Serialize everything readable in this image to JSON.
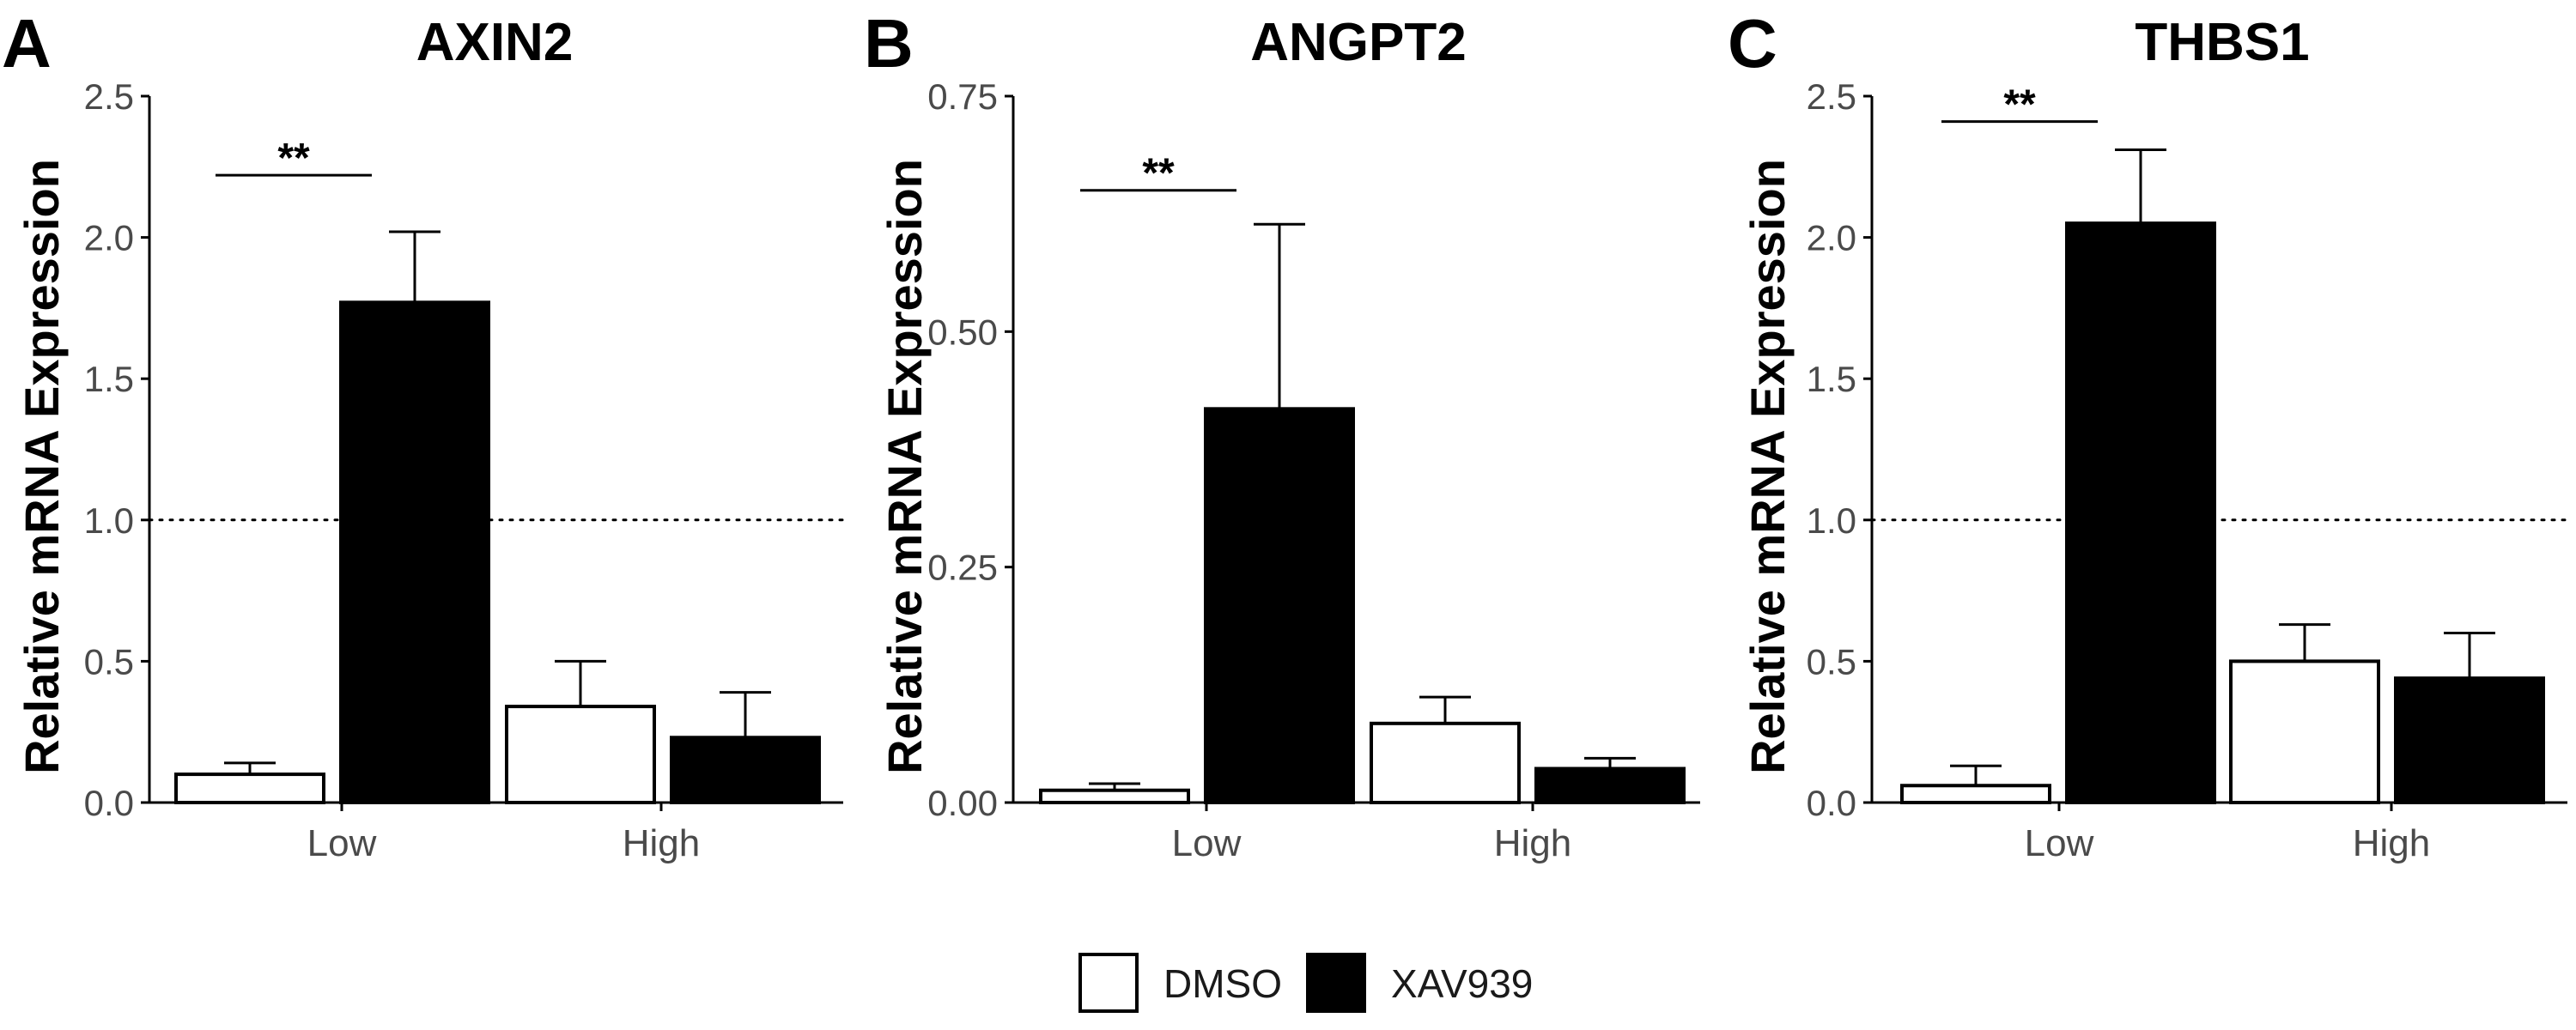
{
  "chart_data": [
    {
      "type": "bar",
      "panel": "A",
      "title": "AXIN2",
      "ylabel": "Relative mRNA Expression",
      "ylim": [
        0,
        2.5
      ],
      "yticks": [
        "0.0",
        "0.5",
        "1.0",
        "1.5",
        "2.0",
        "2.5"
      ],
      "ytick_values": [
        0,
        0.5,
        1.0,
        1.5,
        2.0,
        2.5
      ],
      "reference_line": 1.0,
      "categories": [
        "Low",
        "High"
      ],
      "series": [
        {
          "name": "DMSO",
          "values": [
            0.1,
            0.34
          ],
          "errors": [
            0.04,
            0.16
          ],
          "color": "#ffffff"
        },
        {
          "name": "XAV939",
          "values": [
            1.77,
            0.23
          ],
          "errors": [
            0.25,
            0.16
          ],
          "color": "#000000"
        }
      ],
      "significance": {
        "label": "**",
        "category": "Low",
        "y": 2.22
      }
    },
    {
      "type": "bar",
      "panel": "B",
      "title": "ANGPT2",
      "ylabel": "Relative mRNA Expression",
      "ylim": [
        0,
        0.75
      ],
      "yticks": [
        "0.00",
        "0.25",
        "0.50",
        "0.75"
      ],
      "ytick_values": [
        0,
        0.25,
        0.5,
        0.75
      ],
      "reference_line": null,
      "categories": [
        "Low",
        "High"
      ],
      "series": [
        {
          "name": "DMSO",
          "values": [
            0.013,
            0.084
          ],
          "errors": [
            0.007,
            0.028
          ],
          "color": "#ffffff"
        },
        {
          "name": "XAV939",
          "values": [
            0.418,
            0.036
          ],
          "errors": [
            0.196,
            0.011
          ],
          "color": "#000000"
        }
      ],
      "significance": {
        "label": "**",
        "category": "Low",
        "y": 0.65
      }
    },
    {
      "type": "bar",
      "panel": "C",
      "title": "THBS1",
      "ylabel": "Relative mRNA Expression",
      "ylim": [
        0,
        2.5
      ],
      "yticks": [
        "0.0",
        "0.5",
        "1.0",
        "1.5",
        "2.0",
        "2.5"
      ],
      "ytick_values": [
        0,
        0.5,
        1.0,
        1.5,
        2.0,
        2.5
      ],
      "reference_line": 1.0,
      "categories": [
        "Low",
        "High"
      ],
      "series": [
        {
          "name": "DMSO",
          "values": [
            0.06,
            0.5
          ],
          "errors": [
            0.07,
            0.13
          ],
          "color": "#ffffff"
        },
        {
          "name": "XAV939",
          "values": [
            2.05,
            0.44
          ],
          "errors": [
            0.26,
            0.16
          ],
          "color": "#000000"
        }
      ],
      "significance": {
        "label": "**",
        "category": "Low",
        "y": 2.41
      }
    }
  ],
  "legend": {
    "placement": "bottom-center",
    "items": [
      {
        "label": "DMSO",
        "fill": "#ffffff"
      },
      {
        "label": "XAV939",
        "fill": "#000000"
      }
    ]
  }
}
